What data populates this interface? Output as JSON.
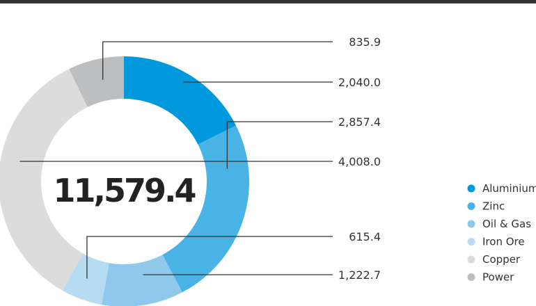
{
  "chart_data": {
    "type": "pie",
    "subtype": "donut",
    "center_label": "11,579.4",
    "categories": [
      "Aluminium",
      "Zinc",
      "Oil & Gas",
      "Iron Ore",
      "Copper",
      "Power"
    ],
    "values": [
      2040.0,
      2857.4,
      1222.7,
      615.4,
      4008.0,
      835.9
    ],
    "value_labels": [
      "2,040.0",
      "2,857.4",
      "1,222.7",
      "615.4",
      "4,008.0",
      "835.9"
    ],
    "colors": [
      "#0099dd",
      "#4ab3e6",
      "#8ec9ec",
      "#b5dcf3",
      "#dcdcdc",
      "#bdbec0"
    ],
    "legend_placement": "right",
    "title": ""
  }
}
